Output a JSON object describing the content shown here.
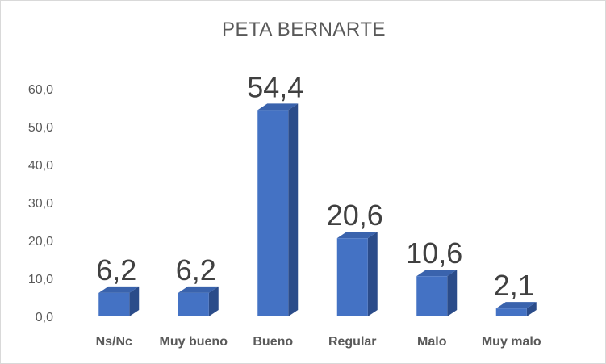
{
  "chart_data": {
    "type": "bar",
    "title": "PETA BERNARTE",
    "categories": [
      "Ns/Nc",
      "Muy bueno",
      "Bueno",
      "Regular",
      "Malo",
      "Muy malo"
    ],
    "values": [
      6.2,
      6.2,
      54.4,
      20.6,
      10.6,
      2.1
    ],
    "data_labels": [
      "6,2",
      "6,2",
      "54,4",
      "20,6",
      "10,6",
      "2,1"
    ],
    "y_ticks": [
      "0,0",
      "10,0",
      "20,0",
      "30,0",
      "40,0",
      "50,0",
      "60,0"
    ],
    "y_tick_values": [
      0,
      10,
      20,
      30,
      40,
      50,
      60
    ],
    "ylim": [
      0,
      60
    ],
    "xlabel": "",
    "ylabel": "",
    "grid": false,
    "legend": "none",
    "bar_3d": true,
    "colors": {
      "front": "#4472C4",
      "top": "#3A63AD",
      "side": "#2B4C8A"
    }
  }
}
